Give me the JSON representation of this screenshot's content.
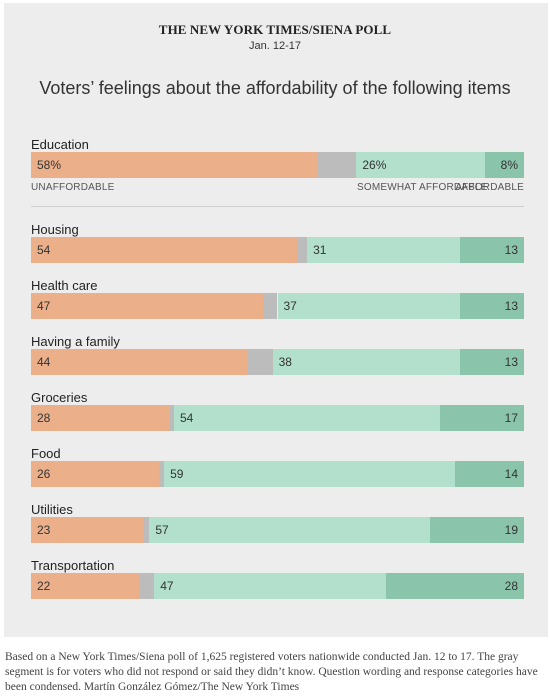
{
  "header": {
    "poll_title": "THE NEW YORK TIMES/SIENA POLL",
    "poll_date": "Jan. 12-17",
    "chart_title": "Voters’ feelings about the affordability of the following items"
  },
  "legend": {
    "unaffordable": "UNAFFORDABLE",
    "somewhat": "SOMEWHAT AFFORDABLE",
    "affordable": "AFFORDABLE"
  },
  "colors": {
    "unaffordable": "#ebb08a",
    "no_answer": "#bcbcbc",
    "somewhat": "#b3e0cd",
    "affordable": "#89c4ab",
    "background": "#ededed"
  },
  "chart_data": {
    "type": "bar",
    "orientation": "horizontal-stacked",
    "segments": [
      "Unaffordable",
      "No answer / don't know",
      "Somewhat affordable",
      "Affordable"
    ],
    "categories": [
      "Education",
      "Housing",
      "Health care",
      "Having a family",
      "Groceries",
      "Food",
      "Utilities",
      "Transportation"
    ],
    "series": [
      {
        "name": "Unaffordable",
        "values": [
          58,
          54,
          47,
          44,
          28,
          26,
          23,
          22
        ],
        "labels": [
          "58%",
          "54",
          "47",
          "44",
          "28",
          "26",
          "23",
          "22"
        ]
      },
      {
        "name": "No answer",
        "values": [
          8,
          2,
          3,
          5,
          1,
          1,
          1,
          3
        ]
      },
      {
        "name": "Somewhat affordable",
        "values": [
          26,
          31,
          37,
          38,
          54,
          59,
          57,
          47
        ],
        "labels": [
          "26%",
          "31",
          "37",
          "38",
          "54",
          "59",
          "57",
          "47"
        ]
      },
      {
        "name": "Affordable",
        "values": [
          8,
          13,
          13,
          13,
          17,
          14,
          19,
          28
        ],
        "labels": [
          "8%",
          "13",
          "13",
          "13",
          "17",
          "14",
          "19",
          "28"
        ]
      }
    ]
  },
  "footnote": "Based on a New York Times/Siena poll of 1,625 registered voters nationwide conducted Jan. 12 to 17. The gray segment is for voters who did not respond or said they didn’t know. Question wording and response categories have been condensed.  Martín González Gómez/The New York Times"
}
